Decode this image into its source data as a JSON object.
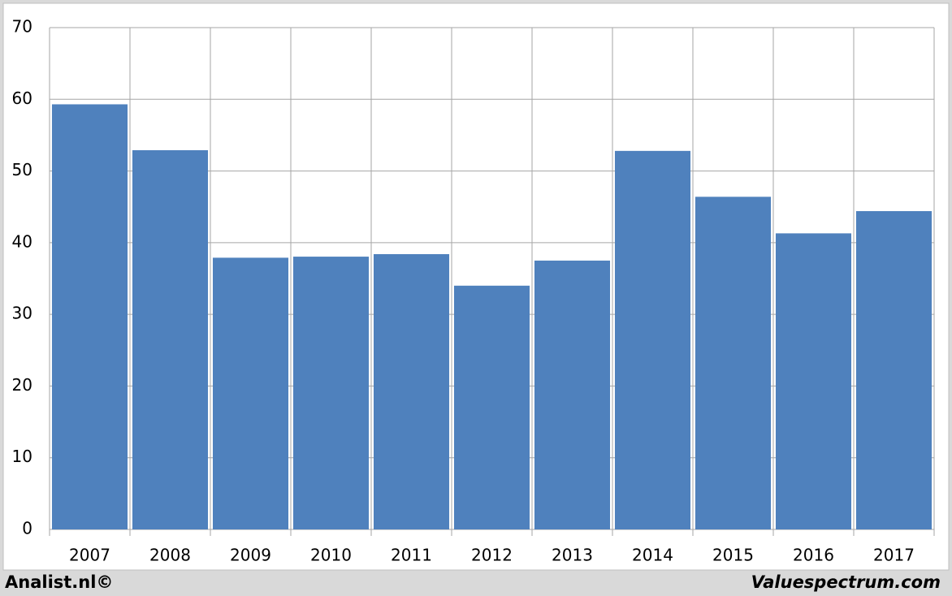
{
  "chart_data": {
    "type": "bar",
    "categories": [
      "2007",
      "2008",
      "2009",
      "2010",
      "2011",
      "2012",
      "2013",
      "2014",
      "2015",
      "2016",
      "2017"
    ],
    "values": [
      59.3,
      52.9,
      37.9,
      38.05,
      38.4,
      34.0,
      37.5,
      52.8,
      46.4,
      41.3,
      44.4
    ],
    "color": "#4f81bd",
    "ylim": [
      0,
      70
    ],
    "yticks": [
      0,
      10,
      20,
      30,
      40,
      50,
      60,
      70
    ],
    "grid": true,
    "source": "Analist.nl©",
    "credit": "Valuespectrum.com"
  }
}
